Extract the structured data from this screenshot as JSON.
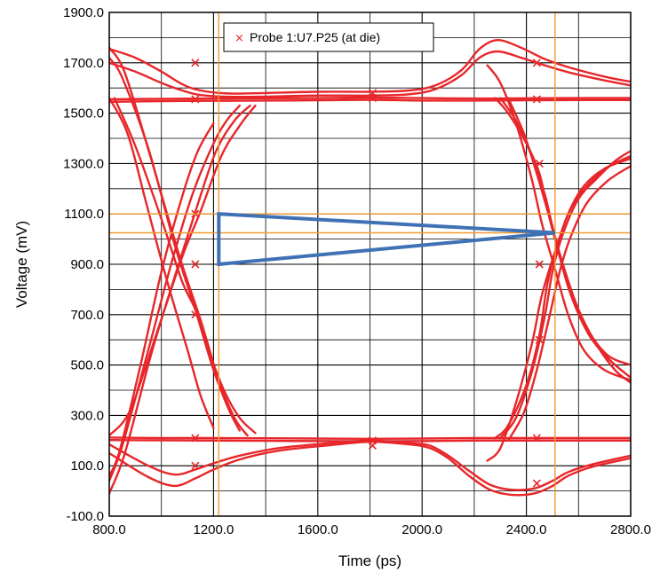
{
  "chart_data": {
    "type": "line",
    "title": "",
    "xlabel": "Time (ps)",
    "ylabel": "Voltage (mV)",
    "xlim": [
      800,
      2800
    ],
    "ylim": [
      -100,
      1900
    ],
    "x_ticks": [
      "800.0",
      "1200.0",
      "1600.0",
      "2000.0",
      "2400.0",
      "2800.0"
    ],
    "y_ticks": [
      "-100.0",
      "100.0",
      "300.0",
      "500.0",
      "700.0",
      "900.0",
      "1100.0",
      "1300.0",
      "1500.0",
      "1700.0",
      "1900.0"
    ],
    "grid": true,
    "legend": {
      "position": "top",
      "entries": [
        "Probe 1:U7.P25 (at die)"
      ]
    },
    "figure_id": "UG199_c7_17_071907",
    "colors": {
      "traces": "#e8262a",
      "marker_lines": "#f29a2e",
      "eye_mask": "#3f72b5",
      "grid": "#000000"
    },
    "markers": {
      "x_ps": [
        1220,
        2510
      ],
      "y_mv": [
        1100,
        1025
      ]
    },
    "eye_mask": {
      "points": [
        [
          1220,
          1100
        ],
        [
          1220,
          900
        ],
        [
          2510,
          1025
        ]
      ]
    },
    "series": [
      {
        "x": [
          800,
          900,
          1000,
          1080,
          1150,
          1260,
          1400,
          1600,
          1800,
          1950,
          2050,
          2150,
          2220,
          2290,
          2380,
          2470,
          2570,
          2700,
          2800
        ],
        "y": [
          1755,
          1720,
          1665,
          1615,
          1590,
          1578,
          1580,
          1585,
          1585,
          1590,
          1610,
          1670,
          1755,
          1790,
          1760,
          1715,
          1680,
          1645,
          1625
        ]
      },
      {
        "x": [
          800,
          900,
          1000,
          1080,
          1150,
          1260,
          1400,
          1600,
          1800,
          1950,
          2050,
          2150,
          2220,
          2290,
          2380,
          2470,
          2570,
          2700,
          2800
        ],
        "y": [
          1700,
          1665,
          1620,
          1590,
          1572,
          1565,
          1566,
          1570,
          1570,
          1575,
          1595,
          1650,
          1720,
          1745,
          1720,
          1690,
          1660,
          1630,
          1610
        ]
      },
      {
        "x": [
          800,
          1000,
          1200,
          1400,
          1600,
          1800,
          2000,
          2200,
          2400,
          2600,
          2800
        ],
        "y": [
          1555,
          1557,
          1558,
          1559,
          1560,
          1562,
          1560,
          1558,
          1559,
          1560,
          1560
        ]
      },
      {
        "x": [
          800,
          1000,
          1200,
          1400,
          1600,
          1800,
          2000,
          2200,
          2400,
          2600,
          2800
        ],
        "y": [
          1545,
          1548,
          1549,
          1550,
          1551,
          1553,
          1550,
          1550,
          1551,
          1552,
          1552
        ]
      },
      {
        "x": [
          800,
          950,
          1050,
          1130,
          1200,
          1300,
          1450,
          1650,
          1800,
          1950,
          2030,
          2100,
          2180,
          2260,
          2340,
          2430,
          2500,
          2560,
          2650,
          2800
        ],
        "y": [
          185,
          100,
          65,
          85,
          110,
          140,
          170,
          190,
          200,
          190,
          180,
          140,
          80,
          25,
          5,
          10,
          40,
          75,
          105,
          140
        ]
      },
      {
        "x": [
          800,
          950,
          1050,
          1130,
          1200,
          1300,
          1450,
          1650,
          1800,
          1950,
          2030,
          2100,
          2180,
          2260,
          2340,
          2430,
          2500,
          2560,
          2650,
          2800
        ],
        "y": [
          150,
          55,
          20,
          50,
          85,
          125,
          160,
          182,
          195,
          185,
          170,
          130,
          60,
          5,
          -15,
          -10,
          20,
          60,
          95,
          130
        ]
      },
      {
        "x": [
          800,
          1000,
          1200,
          1400,
          1600,
          1800,
          2000,
          2200,
          2400,
          2600,
          2800
        ],
        "y": [
          212,
          210,
          210,
          209,
          208,
          207,
          208,
          210,
          210,
          210,
          210
        ]
      },
      {
        "x": [
          800,
          1000,
          1200,
          1400,
          1600,
          1800,
          2000,
          2200,
          2400,
          2600,
          2800
        ],
        "y": [
          202,
          201,
          200,
          199,
          198,
          197,
          198,
          200,
          200,
          200,
          200
        ]
      },
      {
        "x": [
          800,
          850,
          950,
          1050,
          1130,
          1200,
          1260,
          1300
        ],
        "y": [
          1720,
          1640,
          1360,
          980,
          720,
          480,
          320,
          240
        ]
      },
      {
        "x": [
          800,
          860,
          960,
          1070,
          1150,
          1220,
          1280,
          1330
        ],
        "y": [
          1760,
          1660,
          1320,
          930,
          680,
          440,
          290,
          220
        ]
      },
      {
        "x": [
          820,
          900,
          1000,
          1080,
          1130,
          1180,
          1240,
          1300,
          1360
        ],
        "y": [
          1560,
          1370,
          1080,
          830,
          720,
          560,
          400,
          290,
          230
        ]
      },
      {
        "x": [
          800,
          870,
          940,
          1020,
          1100,
          1150,
          1200
        ],
        "y": [
          1560,
          1420,
          1150,
          840,
          560,
          380,
          250
        ]
      },
      {
        "x": [
          800,
          850,
          950,
          1040,
          1120,
          1200,
          1250,
          1300
        ],
        "y": [
          40,
          180,
          560,
          910,
          1180,
          1380,
          1470,
          1530
        ]
      },
      {
        "x": [
          800,
          860,
          960,
          1060,
          1140,
          1210,
          1280,
          1340
        ],
        "y": [
          -10,
          150,
          540,
          880,
          1140,
          1350,
          1470,
          1530
        ]
      },
      {
        "x": [
          800,
          880,
          980,
          1080,
          1150,
          1230,
          1300,
          1360
        ],
        "y": [
          220,
          320,
          620,
          930,
          1110,
          1330,
          1450,
          1530
        ]
      },
      {
        "x": [
          800,
          840,
          920,
          1000,
          1080,
          1140,
          1200
        ],
        "y": [
          60,
          160,
          500,
          870,
          1170,
          1350,
          1460
        ]
      },
      {
        "x": [
          2280,
          2330,
          2400,
          2450,
          2480,
          2520,
          2570,
          2640,
          2720,
          2800
        ],
        "y": [
          1560,
          1500,
          1380,
          1260,
          1120,
          960,
          780,
          620,
          520,
          450
        ]
      },
      {
        "x": [
          2300,
          2360,
          2420,
          2470,
          2500,
          2540,
          2600,
          2670,
          2740,
          2800
        ],
        "y": [
          1560,
          1470,
          1330,
          1180,
          1050,
          900,
          720,
          580,
          480,
          430
        ]
      },
      {
        "x": [
          2250,
          2300,
          2360,
          2420,
          2460,
          2510,
          2560,
          2620,
          2700,
          2800
        ],
        "y": [
          1690,
          1620,
          1460,
          1240,
          1060,
          880,
          700,
          560,
          480,
          440
        ]
      },
      {
        "x": [
          2330,
          2390,
          2440,
          2490,
          2530,
          2570,
          2630,
          2710,
          2800
        ],
        "y": [
          1560,
          1420,
          1260,
          1080,
          930,
          800,
          650,
          540,
          500
        ]
      },
      {
        "x": [
          2280,
          2330,
          2400,
          2450,
          2480,
          2520,
          2570,
          2640,
          2720,
          2800
        ],
        "y": [
          210,
          260,
          420,
          620,
          820,
          980,
          1120,
          1220,
          1290,
          1330
        ]
      },
      {
        "x": [
          2300,
          2360,
          2420,
          2470,
          2500,
          2540,
          2600,
          2670,
          2740,
          2800
        ],
        "y": [
          210,
          290,
          470,
          690,
          870,
          1020,
          1160,
          1240,
          1310,
          1350
        ]
      },
      {
        "x": [
          2250,
          2300,
          2360,
          2420,
          2460,
          2510,
          2560,
          2620,
          2700,
          2800
        ],
        "y": [
          120,
          170,
          350,
          580,
          780,
          950,
          1100,
          1210,
          1280,
          1320
        ]
      },
      {
        "x": [
          2330,
          2390,
          2440,
          2490,
          2530,
          2570,
          2630,
          2710,
          2800
        ],
        "y": [
          200,
          310,
          480,
          700,
          880,
          1010,
          1140,
          1230,
          1290
        ]
      }
    ]
  }
}
